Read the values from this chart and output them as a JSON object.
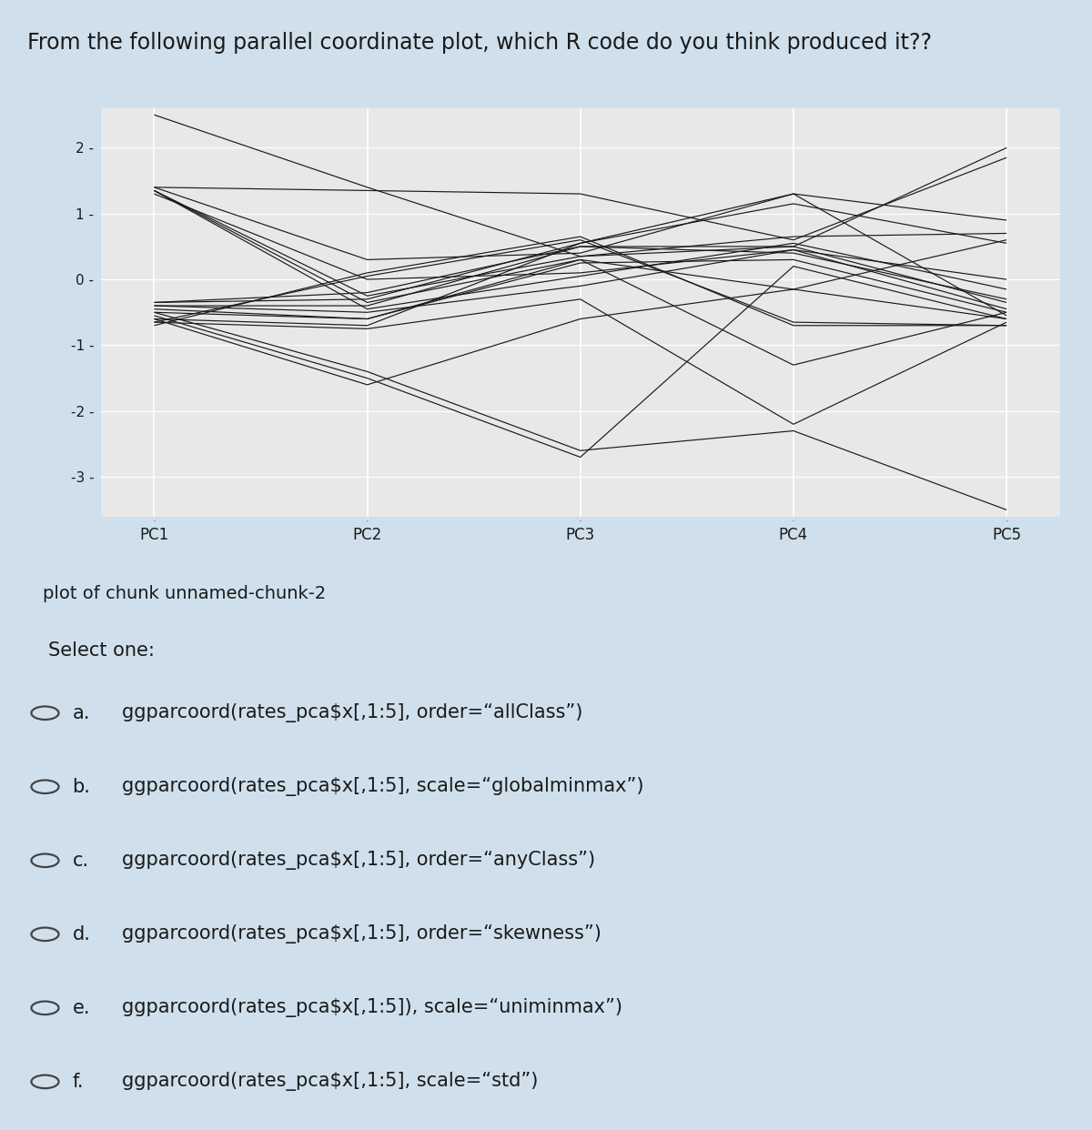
{
  "title": "From the following parallel coordinate plot, which R code do you think produced it??",
  "plot_caption": "plot of chunk unnamed-chunk-2",
  "axes": [
    "PC1",
    "PC2",
    "PC3",
    "PC4",
    "PC5"
  ],
  "ylim": [
    -3.6,
    2.6
  ],
  "yticks": [
    -3,
    -2,
    -1,
    0,
    1,
    2
  ],
  "outer_bg": "#cfe0ec",
  "plot_outer_bg": "#ffffff",
  "plot_bg": "#e8e8e8",
  "line_color": "#1a1a1a",
  "grid_color": "#ffffff",
  "lines": [
    [
      2.5,
      1.4,
      0.35,
      0.5,
      2.0
    ],
    [
      1.4,
      1.35,
      1.3,
      0.6,
      1.85
    ],
    [
      1.4,
      0.3,
      0.4,
      1.3,
      0.9
    ],
    [
      1.35,
      -0.25,
      0.35,
      0.65,
      0.7
    ],
    [
      1.35,
      -0.35,
      0.3,
      -0.15,
      0.6
    ],
    [
      1.35,
      -0.45,
      0.05,
      0.55,
      -0.15
    ],
    [
      1.3,
      0.0,
      0.1,
      0.45,
      0.0
    ],
    [
      -0.35,
      -0.2,
      0.5,
      0.4,
      -0.3
    ],
    [
      -0.35,
      -0.3,
      0.55,
      1.15,
      0.55
    ],
    [
      -0.4,
      -0.4,
      0.5,
      0.5,
      -0.35
    ],
    [
      -0.4,
      -0.5,
      -0.1,
      0.45,
      -0.45
    ],
    [
      -0.45,
      -0.6,
      0.3,
      -1.3,
      -0.5
    ],
    [
      -0.5,
      -0.6,
      0.25,
      0.3,
      -0.5
    ],
    [
      -0.5,
      -1.4,
      -2.6,
      -2.3,
      -3.5
    ],
    [
      -0.55,
      -1.5,
      -2.7,
      0.2,
      -0.6
    ],
    [
      -0.6,
      -0.7,
      0.55,
      1.3,
      -0.55
    ],
    [
      -0.6,
      -1.6,
      -0.6,
      -0.15,
      -0.6
    ],
    [
      -0.65,
      -0.75,
      -0.3,
      -2.2,
      -0.65
    ],
    [
      -0.65,
      0.05,
      0.6,
      -0.65,
      -0.7
    ],
    [
      -0.7,
      0.1,
      0.65,
      -0.7,
      -0.7
    ]
  ],
  "option_labels": [
    "a.",
    "b.",
    "c.",
    "d.",
    "e.",
    "f."
  ],
  "option_texts": [
    "ggparcoord(rates_pca$x[,1:5], order=“allClass”)",
    "ggparcoord(rates_pca$x[,1:5], scale=“globalminmax”)",
    "ggparcoord(rates_pca$x[,1:5], order=“anyClass”)",
    "ggparcoord(rates_pca$x[,1:5], order=“skewness”)",
    "ggparcoord(rates_pca$x[,1:5]), scale=“uniminmax”)",
    "ggparcoord(rates_pca$x[,1:5], scale=“std”)"
  ],
  "select_one_text": "Select one:",
  "title_fontsize": 17,
  "caption_fontsize": 14,
  "select_fontsize": 15,
  "option_fontsize": 15,
  "axis_tick_fontsize": 11,
  "axis_label_fontsize": 12
}
